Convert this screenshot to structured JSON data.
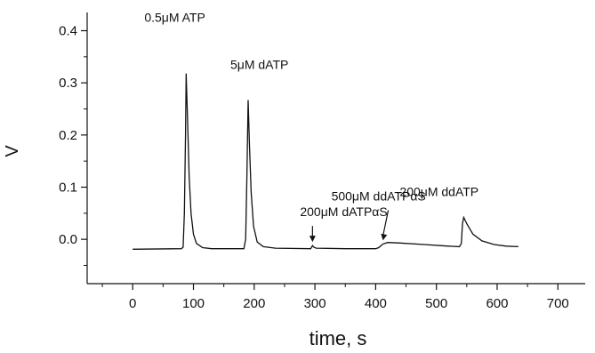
{
  "chart_data": {
    "type": "line",
    "title": "",
    "xlabel": "time, s",
    "ylabel": "V",
    "xlim": [
      -75,
      745
    ],
    "ylim": [
      -0.085,
      0.435
    ],
    "x_ticks": [
      0,
      100,
      200,
      300,
      400,
      500,
      600,
      700
    ],
    "x_tick_labels": [
      "0",
      "100",
      "200",
      "300",
      "400",
      "500",
      "600",
      "700"
    ],
    "y_ticks": [
      0.0,
      0.1,
      0.2,
      0.3,
      0.4
    ],
    "y_tick_labels": [
      "0.0",
      "0.1",
      "0.2",
      "0.3",
      "0.4"
    ],
    "grid": false,
    "series": [
      {
        "points": [
          [
            0,
            -0.019
          ],
          [
            80,
            -0.018
          ],
          [
            83,
            -0.015
          ],
          [
            85,
            0.05
          ],
          [
            87,
            0.2
          ],
          [
            88,
            0.318
          ],
          [
            90,
            0.24
          ],
          [
            93,
            0.12
          ],
          [
            96,
            0.05
          ],
          [
            100,
            0.01
          ],
          [
            105,
            -0.008
          ],
          [
            115,
            -0.016
          ],
          [
            130,
            -0.018
          ],
          [
            183,
            -0.018
          ],
          [
            186,
            0.0
          ],
          [
            188,
            0.12
          ],
          [
            190,
            0.267
          ],
          [
            192,
            0.19
          ],
          [
            195,
            0.09
          ],
          [
            199,
            0.025
          ],
          [
            205,
            -0.005
          ],
          [
            215,
            -0.014
          ],
          [
            235,
            -0.017
          ],
          [
            293,
            -0.018
          ],
          [
            296,
            -0.012
          ],
          [
            298,
            -0.015
          ],
          [
            302,
            -0.017
          ],
          [
            350,
            -0.018
          ],
          [
            400,
            -0.018
          ],
          [
            405,
            -0.016
          ],
          [
            412,
            -0.009
          ],
          [
            420,
            -0.006
          ],
          [
            440,
            -0.007
          ],
          [
            480,
            -0.01
          ],
          [
            520,
            -0.013
          ],
          [
            538,
            -0.014
          ],
          [
            541,
            -0.008
          ],
          [
            543,
            0.03
          ],
          [
            545,
            0.042
          ],
          [
            550,
            0.03
          ],
          [
            560,
            0.01
          ],
          [
            575,
            -0.003
          ],
          [
            595,
            -0.01
          ],
          [
            615,
            -0.013
          ],
          [
            635,
            -0.014
          ]
        ]
      }
    ],
    "annotations": [
      {
        "text": "0.5μM ATP",
        "x": 88,
        "y": 0.318
      },
      {
        "text": "5μM dATP",
        "x": 190,
        "y": 0.267
      },
      {
        "text": "200μM dATPαS",
        "x": 296,
        "y": -0.012
      },
      {
        "text": "500μM ddATPαS",
        "x": 412,
        "y": -0.009
      },
      {
        "text": "200μM ddATP",
        "x": 545,
        "y": 0.042
      }
    ]
  }
}
